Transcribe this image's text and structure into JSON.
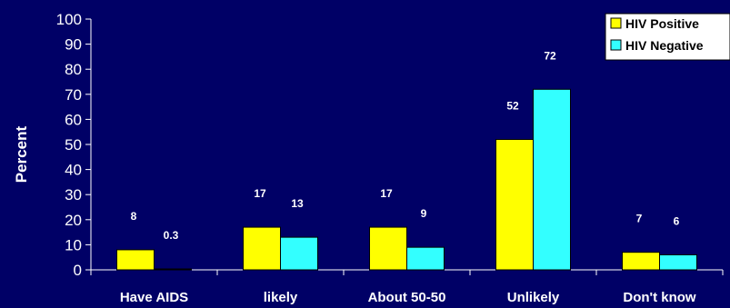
{
  "chart_data": {
    "type": "bar",
    "title": "",
    "xlabel": "",
    "ylabel": "Percent",
    "ylim": [
      0,
      100
    ],
    "yticks": [
      0,
      10,
      20,
      30,
      40,
      50,
      60,
      70,
      80,
      90,
      100
    ],
    "categories": [
      "Have AIDS",
      "likely",
      "About 50-50",
      "Unlikely",
      "Don't know"
    ],
    "series": [
      {
        "name": "HIV Positive",
        "color": "#ffff00",
        "values": [
          8,
          17,
          17,
          52,
          7
        ],
        "labels": [
          "8",
          "17",
          "17",
          "52",
          "7"
        ]
      },
      {
        "name": "HIV Negative",
        "color": "#33ffff",
        "values": [
          0.3,
          13,
          9,
          72,
          6
        ],
        "labels": [
          "0.3",
          "13",
          "9",
          "72",
          "6"
        ]
      }
    ],
    "grid": false,
    "legend_position": "top-right"
  }
}
